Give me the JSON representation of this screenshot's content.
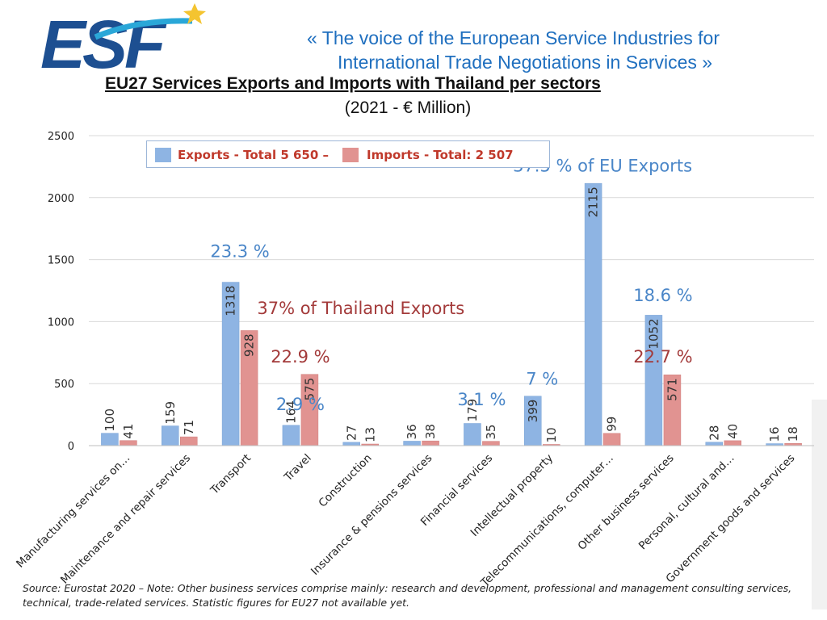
{
  "header": {
    "logo_text": "ESF",
    "tagline_line1": "«  The voice of the European Service Industries for",
    "tagline_line2": "International Trade Negotiations in Services  »"
  },
  "chart_data": {
    "type": "bar",
    "title": "EU27 Services Exports and Imports with Thailand per sectors",
    "subtitle": "(2021 - € Million)",
    "categories": [
      "Manufacturing services on…",
      "Maintenance and repair services",
      "Transport",
      "Travel",
      "Construction",
      "Insurance & pensions services",
      "Financial services",
      "Intellectual property",
      "Telecommunications, computer…",
      "Other business services",
      "Personal, cultural and…",
      "Government goods and services"
    ],
    "series": [
      {
        "name": "Exports - Total 5 650 –",
        "color": "#8eb4e3",
        "values": [
          100,
          159,
          1318,
          164,
          27,
          36,
          179,
          399,
          2115,
          1052,
          28,
          16
        ]
      },
      {
        "name": "Imports - Total: 2 507",
        "color": "#e19391",
        "values": [
          41,
          71,
          928,
          575,
          13,
          38,
          35,
          10,
          99,
          571,
          40,
          18
        ]
      }
    ],
    "yticks": [
      0,
      500,
      1000,
      1500,
      2000,
      2500
    ],
    "ylim": [
      0,
      2500
    ],
    "annotations": [
      {
        "text": "37.5 % of EU Exports",
        "color": "#4a86c8",
        "cat": 8,
        "y": 2210
      },
      {
        "text": "23.3 %",
        "color": "#4a86c8",
        "cat": 2,
        "y": 1520
      },
      {
        "text": "18.6 %",
        "color": "#4a86c8",
        "cat": 9,
        "y": 1165
      },
      {
        "text": "37% of Thailand Exports",
        "color": "#a33a3a",
        "cat": 4,
        "y": 1060
      },
      {
        "text": "22.9 %",
        "color": "#a33a3a",
        "cat": 3,
        "y": 670
      },
      {
        "text": "22.7 %",
        "color": "#a33a3a",
        "cat": 9,
        "y": 670
      },
      {
        "text": "7 %",
        "color": "#4a86c8",
        "cat": 7,
        "y": 490
      },
      {
        "text": "3.1 %",
        "color": "#4a86c8",
        "cat": 6,
        "y": 325
      },
      {
        "text": "2.9 %",
        "color": "#4a86c8",
        "cat": 3,
        "y": 285
      }
    ]
  },
  "footer": {
    "source_line1": "Source: Eurostat 2020 – Note: Other business services comprise mainly: research and development, professional and management consulting services,",
    "source_line2": "technical, trade-related services. Statistic figures for EU27 not available yet."
  }
}
